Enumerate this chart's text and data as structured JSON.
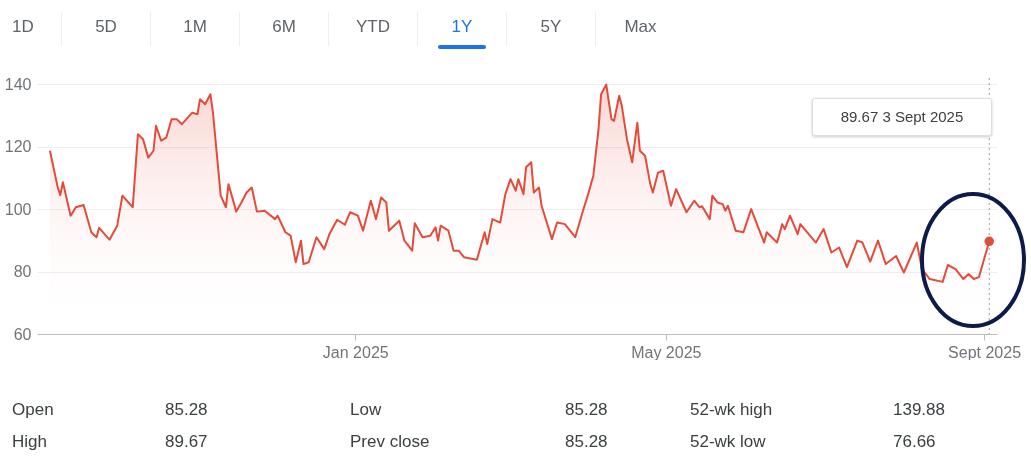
{
  "chart_data": {
    "type": "area",
    "x": [
      "2024-09-05",
      "2024-09-08",
      "2024-09-09",
      "2024-09-10",
      "2024-09-13",
      "2024-09-15",
      "2024-09-18",
      "2024-09-21",
      "2024-09-23",
      "2024-09-24",
      "2024-09-28",
      "2024-10-01",
      "2024-10-03",
      "2024-10-07",
      "2024-10-09",
      "2024-10-11",
      "2024-10-13",
      "2024-10-15",
      "2024-10-16",
      "2024-10-18",
      "2024-10-20",
      "2024-10-22",
      "2024-10-24",
      "2024-10-26",
      "2024-10-30",
      "2024-11-01",
      "2024-11-02",
      "2024-11-04",
      "2024-11-06",
      "2024-11-07",
      "2024-11-10",
      "2024-11-12",
      "2024-11-13",
      "2024-11-16",
      "2024-11-18",
      "2024-11-20",
      "2024-11-22",
      "2024-11-24",
      "2024-11-27",
      "2024-12-01",
      "2024-12-02",
      "2024-12-05",
      "2024-12-07",
      "2024-12-09",
      "2024-12-11",
      "2024-12-12",
      "2024-12-14",
      "2024-12-17",
      "2024-12-20",
      "2024-12-22",
      "2024-12-25",
      "2024-12-28",
      "2024-12-30",
      "2025-01-02",
      "2025-01-04",
      "2025-01-07",
      "2025-01-09",
      "2025-01-11",
      "2025-01-13",
      "2025-01-14",
      "2025-01-18",
      "2025-01-20",
      "2025-01-23",
      "2025-01-24",
      "2025-01-27",
      "2025-01-30",
      "2025-02-01",
      "2025-02-02",
      "2025-02-03",
      "2025-02-06",
      "2025-02-08",
      "2025-02-10",
      "2025-02-12",
      "2025-02-17",
      "2025-02-20",
      "2025-02-21",
      "2025-02-23",
      "2025-02-26",
      "2025-02-28",
      "2025-03-02",
      "2025-03-04",
      "2025-03-05",
      "2025-03-07",
      "2025-03-08",
      "2025-03-10",
      "2025-03-11",
      "2025-03-13",
      "2025-03-14",
      "2025-03-18",
      "2025-03-20",
      "2025-03-23",
      "2025-03-27",
      "2025-03-30",
      "2025-04-01",
      "2025-04-03",
      "2025-04-05",
      "2025-04-06",
      "2025-04-08",
      "2025-04-10",
      "2025-04-11",
      "2025-04-13",
      "2025-04-14",
      "2025-04-16",
      "2025-04-18",
      "2025-04-20",
      "2025-04-21",
      "2025-04-23",
      "2025-04-25",
      "2025-04-26",
      "2025-04-28",
      "2025-04-30",
      "2025-05-03",
      "2025-05-05",
      "2025-05-09",
      "2025-05-12",
      "2025-05-14",
      "2025-05-15",
      "2025-05-18",
      "2025-05-19",
      "2025-05-21",
      "2025-05-23",
      "2025-05-24",
      "2025-05-25",
      "2025-05-28",
      "2025-05-31",
      "2025-06-03",
      "2025-06-08",
      "2025-06-09",
      "2025-06-13",
      "2025-06-15",
      "2025-06-16",
      "2025-06-18",
      "2025-06-21",
      "2025-06-22",
      "2025-06-28",
      "2025-07-01",
      "2025-07-04",
      "2025-07-07",
      "2025-07-10",
      "2025-07-14",
      "2025-07-16",
      "2025-07-19",
      "2025-07-22",
      "2025-07-25",
      "2025-07-29",
      "2025-08-01",
      "2025-08-06",
      "2025-08-08",
      "2025-08-11",
      "2025-08-16",
      "2025-08-18",
      "2025-08-21",
      "2025-08-24",
      "2025-08-26",
      "2025-08-28",
      "2025-08-30",
      "2025-09-03"
    ],
    "series": [
      {
        "color": "#e34b3b",
        "values": [
          118.7,
          107,
          104.5,
          108.6,
          97.9,
          100.6,
          101.3,
          92.6,
          91,
          94,
          90.2,
          94.7,
          104.3,
          100.6,
          124,
          122.4,
          116.5,
          118.7,
          126.7,
          121.9,
          123,
          128.8,
          128.8,
          127.2,
          130.9,
          130.4,
          135.2,
          133.6,
          136.8,
          130.9,
          104.3,
          100.6,
          108,
          99.2,
          102.1,
          105.3,
          106.9,
          99.2,
          99.5,
          96.8,
          97.9,
          92.6,
          91.5,
          83,
          89.9,
          82.4,
          83,
          91,
          87.2,
          92,
          96.6,
          95,
          99,
          97.9,
          93.1,
          102.7,
          96.8,
          103.7,
          102.1,
          93.1,
          96.3,
          89.9,
          86.7,
          95.5,
          91,
          91.5,
          94.2,
          89.9,
          94.7,
          93.1,
          86.7,
          86.7,
          84.6,
          83.8,
          92.6,
          88.8,
          96.8,
          95.7,
          104.8,
          109.6,
          105.9,
          109.6,
          104.8,
          113.4,
          115,
          105.3,
          106.9,
          101.1,
          90.4,
          95.7,
          95.2,
          91,
          99.5,
          104.8,
          110.7,
          125.6,
          136.8,
          139.9,
          128.8,
          128.3,
          136.3,
          133.1,
          122.4,
          115,
          127.7,
          118.7,
          117.1,
          108,
          105.3,
          111.7,
          112.3,
          101.1,
          106.4,
          99,
          102.7,
          100.6,
          100.9,
          96.8,
          104.3,
          102.1,
          101.6,
          99.5,
          101.1,
          93.1,
          92.6,
          100,
          89.3,
          92.6,
          89.3,
          95.2,
          93.6,
          97.9,
          92,
          95.2,
          89.3,
          93.6,
          86.1,
          87.7,
          81.4,
          89.9,
          89.3,
          83.2,
          89.9,
          82.4,
          85,
          79.7,
          89.3,
          80.8,
          77.6,
          76.7,
          82.1,
          80.8,
          77.6,
          79.2,
          77.6,
          78.2,
          89.7
        ]
      }
    ],
    "xlim": [
      "2024-08-31",
      "2025-09-06"
    ],
    "xticks": [
      {
        "value": "2025-01-01",
        "label": "Jan 2025"
      },
      {
        "value": "2025-05-01",
        "label": "May 2025"
      },
      {
        "value": "2025-09-01",
        "label": "Sept 2025"
      }
    ],
    "ylim": [
      60,
      142
    ],
    "yticks": [
      60,
      80,
      100,
      120,
      140
    ],
    "grid": "y",
    "annotations": [
      "1D",
      "5D",
      "1M",
      "6M",
      "YTD",
      "1Y",
      "5Y",
      "Max",
      "Open",
      "85.28",
      "Low",
      "85.28",
      "52-wk high",
      "139.88",
      "High",
      "89.67",
      "Prev close",
      "85.28",
      "52-wk low",
      "76.66",
      "89.67 3 Sept 2025"
    ],
    "ref_lines": [
      {
        "axis": "x",
        "value": "2025-09-03",
        "color": "#9e9e9e",
        "line_style": "dotted"
      }
    ]
  }
}
